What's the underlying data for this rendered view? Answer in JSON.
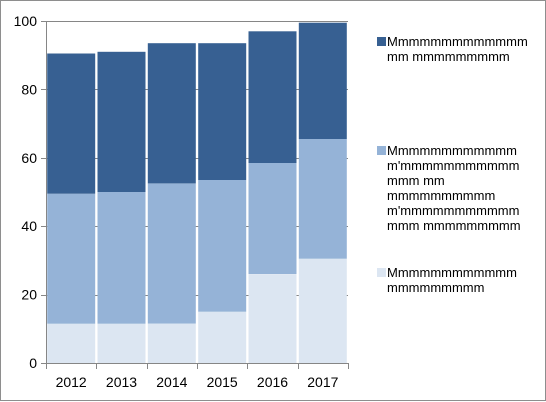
{
  "chart_data": {
    "type": "bar",
    "stacked": true,
    "categories": [
      "2012",
      "2013",
      "2014",
      "2015",
      "2016",
      "2017"
    ],
    "ylim": [
      0,
      100
    ],
    "yticks": [
      0,
      20,
      40,
      60,
      80,
      100
    ],
    "grid": true,
    "legend_position": "right",
    "series": [
      {
        "name": "Mmmmmmmmmmmmm\nmm mmmmmmmmm",
        "color": "#376092",
        "values": [
          41,
          41,
          41,
          40,
          38.5,
          34
        ]
      },
      {
        "name": "Mmmmmmmmmmmm\nm'mmmmmmmmmmm\nmmm mm\nmmmmmmmmmm\nm'mmmmmmmmmmm\nmmm mmmmmmmmm",
        "color": "#95b3d7",
        "values": [
          38,
          38.5,
          41,
          38.5,
          32.5,
          35
        ]
      },
      {
        "name": "Mmmmmmmmmmmm\nmmmmmmmmm",
        "color": "#dce6f2",
        "values": [
          11.5,
          11.5,
          11.5,
          15,
          26,
          30.5
        ]
      }
    ]
  }
}
